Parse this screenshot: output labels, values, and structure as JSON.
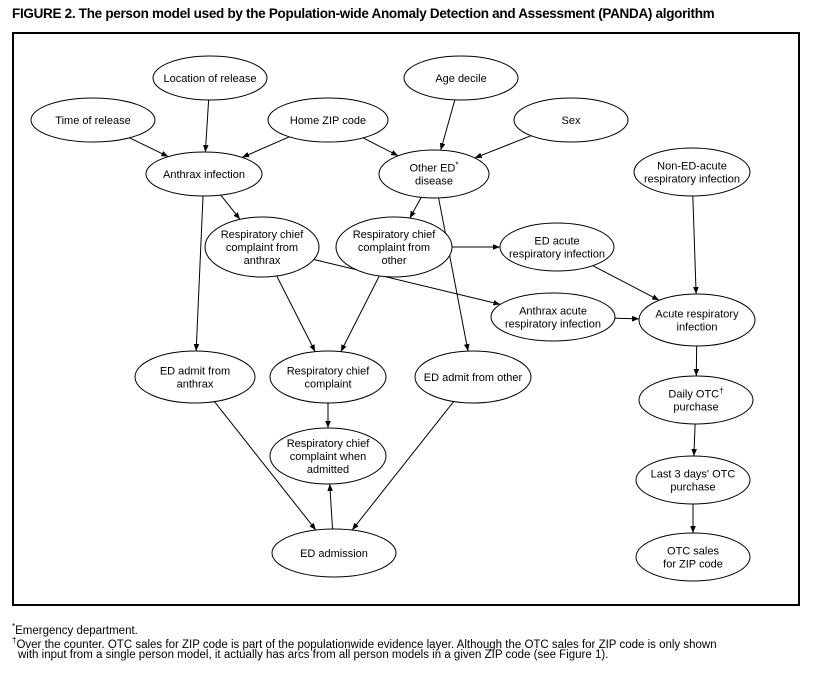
{
  "title": "FIGURE 2. The person model used by the Population-wide Anomaly Detection and Assessment (PANDA) algorithm",
  "nodes": {
    "location": {
      "lines": [
        "Location of release"
      ]
    },
    "age": {
      "lines": [
        "Age decile"
      ]
    },
    "time": {
      "lines": [
        "Time of release"
      ]
    },
    "homezip": {
      "lines": [
        "Home ZIP code"
      ]
    },
    "sex": {
      "lines": [
        "Sex"
      ]
    },
    "anthrax": {
      "lines": [
        "Anthrax infection"
      ]
    },
    "other": {
      "lines": [
        "Other ED",
        "disease"
      ],
      "sup": "*"
    },
    "nonED": {
      "lines": [
        "Non-ED-acute",
        "respiratory infection"
      ]
    },
    "rccAnthrax": {
      "lines": [
        "Respiratory chief",
        "complaint from",
        "anthrax"
      ]
    },
    "rccOther": {
      "lines": [
        "Respiratory chief",
        "complaint from",
        "other"
      ]
    },
    "edAcute": {
      "lines": [
        "ED acute",
        "respiratory infection"
      ]
    },
    "anthraxAcute": {
      "lines": [
        "Anthrax acute",
        "respiratory infection"
      ]
    },
    "acute": {
      "lines": [
        "Acute respiratory",
        "infection"
      ]
    },
    "edAdmitAnthrax": {
      "lines": [
        "ED admit from",
        "anthrax"
      ]
    },
    "rcc": {
      "lines": [
        "Respiratory chief",
        "complaint"
      ]
    },
    "edAdmitOther": {
      "lines": [
        "ED admit from other"
      ]
    },
    "daily": {
      "lines": [
        "Daily OTC",
        "purchase"
      ],
      "sup": "†"
    },
    "rccAdmitted": {
      "lines": [
        "Respiratory chief",
        "complaint when",
        "admitted"
      ]
    },
    "last3": {
      "lines": [
        "Last 3 days' OTC",
        "purchase"
      ]
    },
    "edAdmission": {
      "lines": [
        "ED admission"
      ]
    },
    "otcSales": {
      "lines": [
        "OTC sales",
        "for ZIP code"
      ]
    }
  },
  "edges": [
    [
      "location",
      "anthrax"
    ],
    [
      "time",
      "anthrax"
    ],
    [
      "homezip",
      "anthrax"
    ],
    [
      "homezip",
      "other"
    ],
    [
      "age",
      "other"
    ],
    [
      "sex",
      "other"
    ],
    [
      "anthrax",
      "rccAnthrax"
    ],
    [
      "anthrax",
      "edAdmitAnthrax"
    ],
    [
      "other",
      "rccOther"
    ],
    [
      "other",
      "edAdmitOther"
    ],
    [
      "rccOther",
      "edAcute"
    ],
    [
      "rccAnthrax",
      "anthraxAcute"
    ],
    [
      "rccAnthrax",
      "rcc"
    ],
    [
      "rccOther",
      "rcc"
    ],
    [
      "edAcute",
      "acute"
    ],
    [
      "anthraxAcute",
      "acute"
    ],
    [
      "nonED",
      "acute"
    ],
    [
      "acute",
      "daily"
    ],
    [
      "daily",
      "last3"
    ],
    [
      "last3",
      "otcSales"
    ],
    [
      "rcc",
      "rccAdmitted"
    ],
    [
      "edAdmitAnthrax",
      "edAdmission"
    ],
    [
      "edAdmitOther",
      "edAdmission"
    ],
    [
      "edAdmission",
      "rccAdmitted"
    ]
  ],
  "footnotes": {
    "star_mark": "*",
    "star_text": "Emergency department.",
    "dagger_mark": "†",
    "dagger_text": "Over the counter. OTC sales for ZIP code is part of the populationwide evidence layer. Although the OTC sales for ZIP code is only shown",
    "dagger_text2": "with input from a single person model, it actually has arcs from all person models in a given ZIP code (see Figure 1)."
  }
}
